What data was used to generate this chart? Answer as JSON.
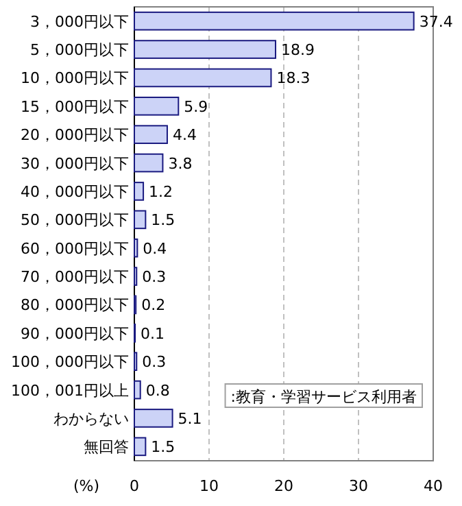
{
  "chart_data": {
    "type": "bar",
    "orientation": "horizontal",
    "xlabel": "(%)",
    "categories": [
      "3，000円以下",
      "5，000円以下",
      "10，000円以下",
      "15，000円以下",
      "20，000円以下",
      "30，000円以下",
      "40，000円以下",
      "50，000円以下",
      "60，000円以下",
      "70，000円以下",
      "80，000円以下",
      "90，000円以下",
      "100，000円以下",
      "100，001円以上",
      "わからない",
      "無回答"
    ],
    "series": [
      {
        "name": ":教育・学習サービス利用者",
        "color": "#ccd3f7",
        "values": [
          37.4,
          18.9,
          18.3,
          5.9,
          4.4,
          3.8,
          1.2,
          1.5,
          0.4,
          0.3,
          0.2,
          0.1,
          0.3,
          0.8,
          5.1,
          1.5
        ]
      }
    ],
    "xlim": [
      0,
      40
    ],
    "xticks": [
      0,
      10,
      20,
      30,
      40
    ],
    "grid": "x",
    "legend": "bottom right",
    "data_labels": true
  }
}
